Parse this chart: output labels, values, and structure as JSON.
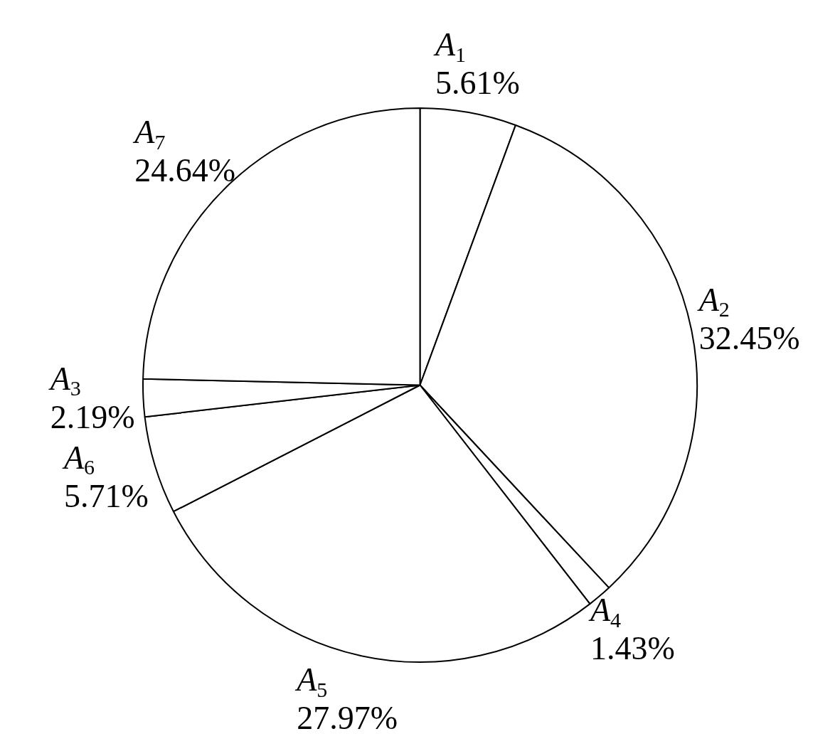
{
  "chart_data": {
    "type": "pie",
    "categories": [
      "A$_{1}$",
      "A$_{2}$",
      "A$_{4}$",
      "A$_{5}$",
      "A$_{6}$",
      "A$_{3}$",
      "A$_{7}$"
    ],
    "values": [
      5.61,
      32.45,
      1.43,
      27.97,
      5.71,
      2.19,
      24.64
    ],
    "value_labels": [
      "5.61%",
      "32.45%",
      "1.43%",
      "27.97%",
      "5.71%",
      "2.19%",
      "24.64%"
    ],
    "colors": [
      "#ffffff",
      "#ffffff",
      "#ffffff",
      "#ffffff",
      "#ffffff",
      "#ffffff",
      "#ffffff"
    ],
    "legend": false
  }
}
